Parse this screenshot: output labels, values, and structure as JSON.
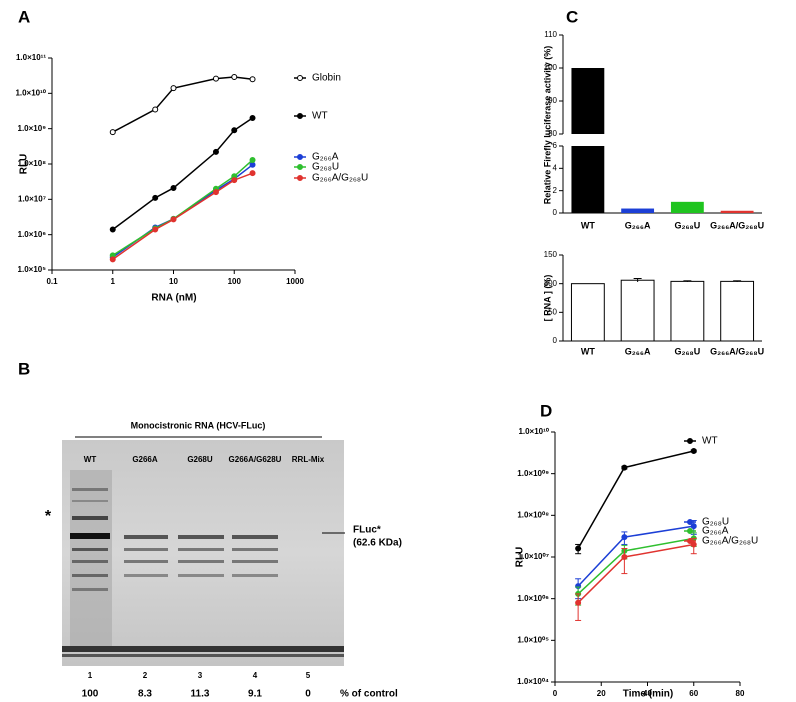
{
  "chart_data": [
    {
      "panel": "A",
      "type": "line",
      "xscale": "log",
      "yscale": "log",
      "xlabel": "RNA (nM)",
      "ylabel": "RLU",
      "x": [
        1,
        5,
        10,
        50,
        100,
        200
      ],
      "xlim": [
        0.1,
        1000
      ],
      "xticks": [
        0.1,
        1,
        10,
        100,
        1000
      ],
      "ylim": [
        100000,
        100000000000
      ],
      "yticks": [
        {
          "value": 100000,
          "label": "1.0×10⁵"
        },
        {
          "value": 1000000,
          "label": "1.0×10⁶"
        },
        {
          "value": 10000000,
          "label": "1.0×10⁷"
        },
        {
          "value": 100000000,
          "label": "1.0×10⁸"
        },
        {
          "value": 1000000000,
          "label": "1.0×10⁹"
        },
        {
          "value": 10000000000,
          "label": "1.0×10¹⁰"
        },
        {
          "value": 100000000000,
          "label": "1.0×10¹¹"
        }
      ],
      "series": [
        {
          "name": "Globin",
          "color": "#000000",
          "marker": "open",
          "values": [
            800000000,
            3500000000,
            14000000000,
            26000000000,
            29000000000,
            25000000000
          ]
        },
        {
          "name": "WT",
          "color": "#000000",
          "values": [
            1400000,
            11000000,
            21000000,
            220000000,
            900000000,
            2000000000
          ]
        },
        {
          "name": "G₂₆₆A",
          "color": "#1c3fd6",
          "values": [
            230000,
            1600000,
            2800000,
            18000000,
            38000000,
            95000000
          ]
        },
        {
          "name": "G₂₆₈U",
          "color": "#2fbf2f",
          "values": [
            260000,
            1500000,
            2800000,
            20000000,
            45000000,
            130000000
          ]
        },
        {
          "name": "G₂₆₆A/G₂₆₈U",
          "color": "#e0332f",
          "values": [
            200000,
            1400000,
            2700000,
            16000000,
            35000000,
            55000000
          ]
        }
      ]
    },
    {
      "panel": "C",
      "type": "bar",
      "ylabel": "Relative Firefly luciferase activity (%)",
      "categories": [
        "WT",
        "G₂₆₆A",
        "G₂₆₈U",
        "G₂₆₆A/G₂₆₈U"
      ],
      "values": [
        100,
        0.4,
        1.0,
        0.2
      ],
      "colors": [
        "#000000",
        "#1c3fd6",
        "#1fc41f",
        "#e0332f"
      ],
      "ylim": [
        0,
        110
      ],
      "ybreak": [
        6,
        80
      ],
      "yticks": [
        0,
        2,
        4,
        6,
        80,
        90,
        100,
        110
      ]
    },
    {
      "type": "bar",
      "ylabel": "[ RNA ] (%)",
      "categories": [
        "WT",
        "G₂₆₆A",
        "G₂₆₈U",
        "G₂₆₆A/G₂₆₈U"
      ],
      "values": [
        100,
        106,
        104,
        104
      ],
      "errors": [
        0,
        3,
        1,
        1
      ],
      "color": "#ffffff",
      "edgecolor": "#000000",
      "ylim": [
        0,
        150
      ],
      "yticks": [
        0,
        50,
        100,
        150
      ]
    },
    {
      "panel": "D",
      "type": "line",
      "xscale": "linear",
      "yscale": "log",
      "xlabel": "Time (min)",
      "ylabel": "RLU",
      "x": [
        10,
        30,
        60
      ],
      "xlim": [
        0,
        80
      ],
      "xticks": [
        0,
        20,
        40,
        60,
        80
      ],
      "ylim": [
        10000,
        10000000000
      ],
      "yticks": [
        {
          "value": 10000,
          "label": "1.0×10⁰⁴"
        },
        {
          "value": 100000,
          "label": "1.0×10⁰⁵"
        },
        {
          "value": 1000000,
          "label": "1.0×10⁰⁶"
        },
        {
          "value": 10000000,
          "label": "1.0×10⁰⁷"
        },
        {
          "value": 100000000,
          "label": "1.0×10⁰⁸"
        },
        {
          "value": 1000000000,
          "label": "1.0×10⁰⁹"
        },
        {
          "value": 10000000000,
          "label": "1.0×10¹⁰"
        }
      ],
      "series": [
        {
          "name": "WT",
          "color": "#000000",
          "values": [
            16000000,
            1400000000,
            3500000000
          ],
          "errors": [
            4000000,
            100000000,
            200000000
          ]
        },
        {
          "name": "G₂₆₈U",
          "color": "#1c3fd6",
          "values": [
            2000000,
            30000000,
            55000000
          ],
          "errors": [
            1000000,
            10000000,
            20000000
          ]
        },
        {
          "name": "G₂₆₆A",
          "color": "#2fbf2f",
          "values": [
            1300000,
            14000000,
            28000000
          ],
          "errors": [
            600000,
            5000000,
            10000000
          ]
        },
        {
          "name": "G₂₆₆A/G₂₆₈U",
          "color": "#e0332f",
          "values": [
            800000,
            10000000,
            20000000
          ],
          "errors": [
            500000,
            6000000,
            8000000
          ]
        }
      ]
    }
  ],
  "gel": {
    "panel": "B",
    "header": "Monocistronic RNA (HCV-FLuc)",
    "lanes": [
      "WT",
      "G266A",
      "G268U",
      "G266A/G628U",
      "RRL-Mix"
    ],
    "marker": "*",
    "band_label": "FLuc*",
    "band_size": "(62.6 KDa)",
    "lane_numbers": [
      "1",
      "2",
      "3",
      "4",
      "5"
    ],
    "percent": [
      100,
      8.3,
      11.3,
      9.1,
      0
    ],
    "percent_label": "% of control"
  }
}
